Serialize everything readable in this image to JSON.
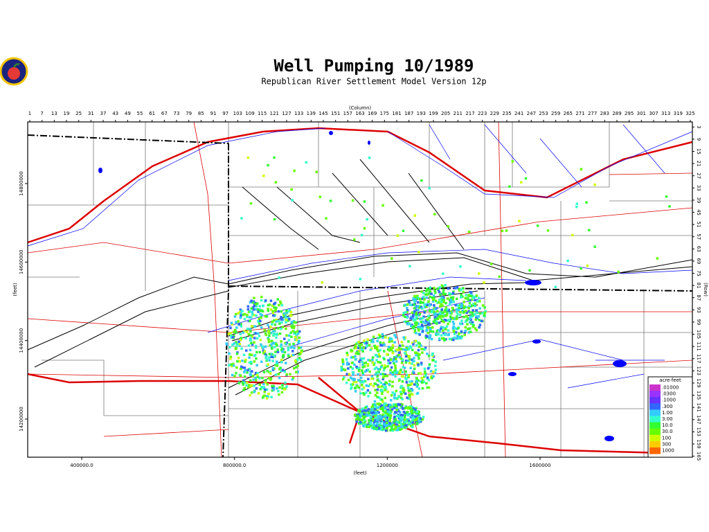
{
  "header": {
    "title": "Well Pumping 10/1989",
    "subtitle": "Republican River Settlement Model Version 12p"
  },
  "column_axis": {
    "label": "(Column)",
    "ticks": [
      1,
      7,
      13,
      19,
      25,
      31,
      37,
      43,
      49,
      55,
      61,
      67,
      73,
      79,
      85,
      91,
      97,
      103,
      109,
      115,
      121,
      127,
      133,
      139,
      145,
      151,
      157,
      163,
      169,
      175,
      181,
      187,
      193,
      199,
      205,
      211,
      217,
      223,
      229,
      235,
      241,
      247,
      253,
      259,
      265,
      271,
      277,
      283,
      289,
      295,
      301,
      307,
      313,
      319,
      325
    ]
  },
  "row_axis": {
    "label": "(Row)",
    "ticks": [
      3,
      9,
      15,
      21,
      27,
      33,
      39,
      45,
      51,
      57,
      63,
      69,
      75,
      81,
      87,
      93,
      99,
      105,
      111,
      117,
      123,
      129,
      135,
      141,
      147,
      153,
      159,
      165
    ]
  },
  "x_axis": {
    "label": "(feet)",
    "ticks": [
      {
        "value": 400000,
        "label": "400000.0"
      },
      {
        "value": 800000,
        "label": "800000.0"
      },
      1200000,
      1600000
    ]
  },
  "y_axis": {
    "label": "(feet)",
    "ticks": [
      14800000,
      14600000,
      14400000,
      14200000
    ]
  },
  "legend": {
    "title": "acre-feet",
    "items": [
      {
        "label": ".01000",
        "color": "#cc33cc"
      },
      {
        "label": ".0300",
        "color": "#9933ff"
      },
      {
        "label": ".1000",
        "color": "#6633ff"
      },
      {
        "label": ".300",
        "color": "#3366ff"
      },
      {
        "label": "1.00",
        "color": "#33ccff"
      },
      {
        "label": "3.00",
        "color": "#33ffcc"
      },
      {
        "label": "10.0",
        "color": "#33ff33"
      },
      {
        "label": "30.0",
        "color": "#66ff00"
      },
      {
        "label": "100",
        "color": "#ccff00"
      },
      {
        "label": "300",
        "color": "#ffcc00"
      },
      {
        "label": "1000",
        "color": "#ff6600"
      }
    ]
  }
}
